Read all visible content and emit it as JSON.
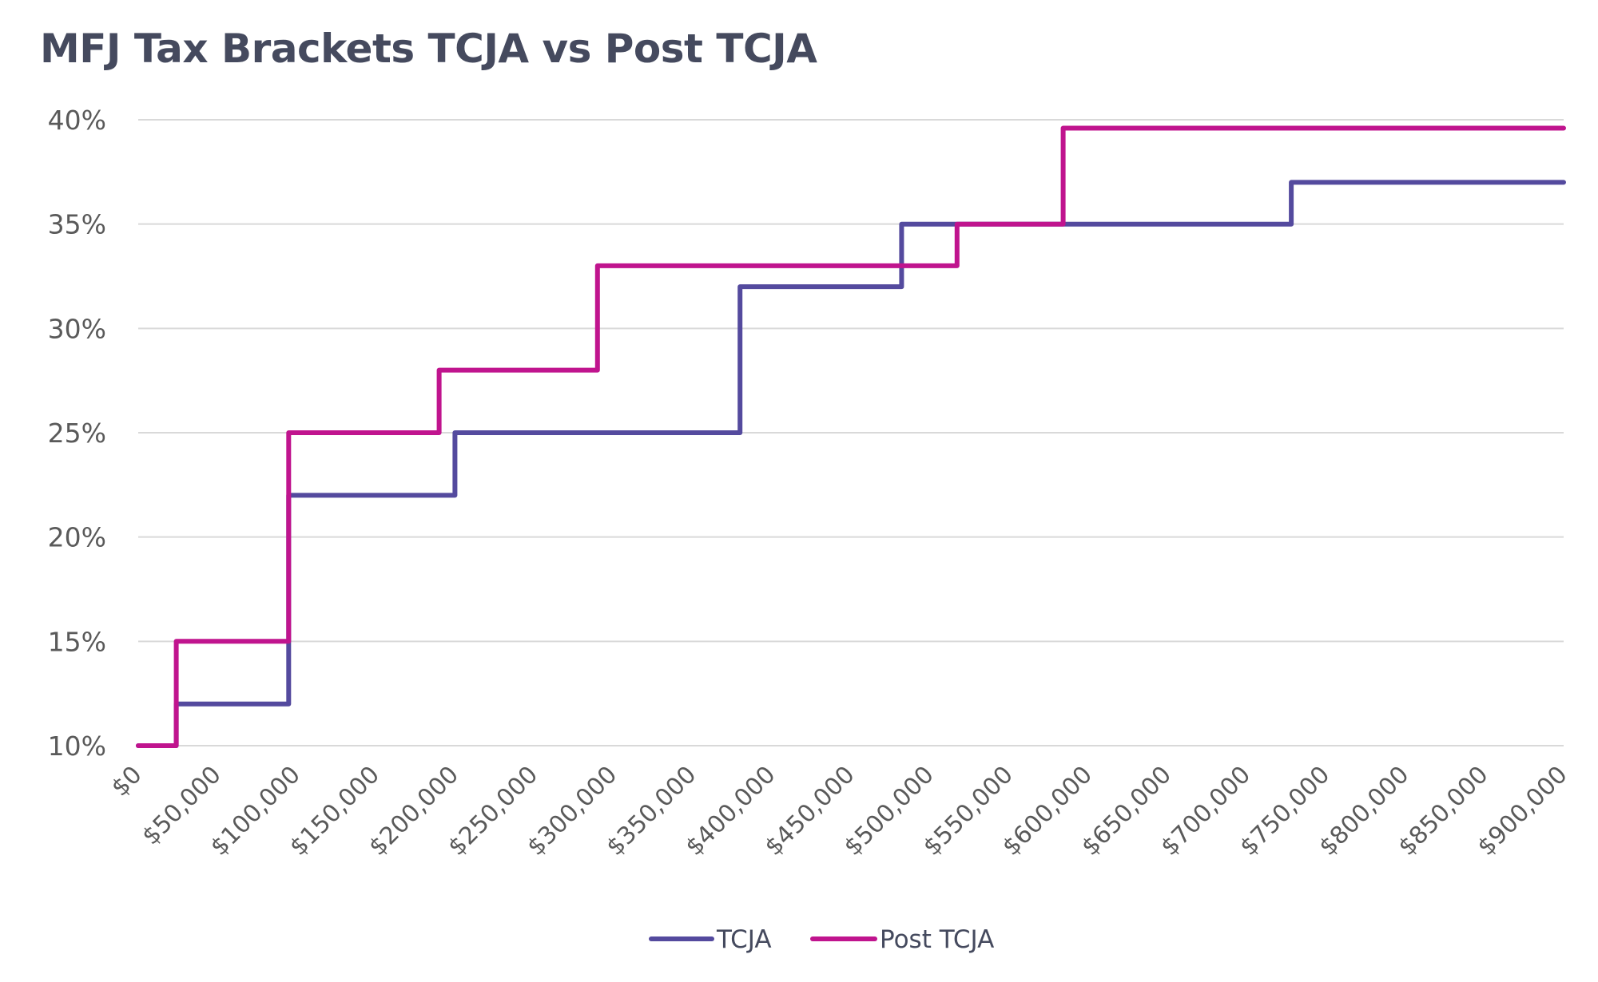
{
  "chart_data": {
    "type": "line",
    "title": "MFJ Tax Brackets TCJA vs Post TCJA",
    "xlabel": "",
    "ylabel": "",
    "xlim": [
      0,
      900000
    ],
    "ylim": [
      0.1,
      0.4
    ],
    "x_ticks": [
      {
        "value": 0,
        "label": "$0"
      },
      {
        "value": 50000,
        "label": "$50,000"
      },
      {
        "value": 100000,
        "label": "$100,000"
      },
      {
        "value": 150000,
        "label": "$150,000"
      },
      {
        "value": 200000,
        "label": "$200,000"
      },
      {
        "value": 250000,
        "label": "$250,000"
      },
      {
        "value": 300000,
        "label": "$300,000"
      },
      {
        "value": 350000,
        "label": "$350,000"
      },
      {
        "value": 400000,
        "label": "$400,000"
      },
      {
        "value": 450000,
        "label": "$450,000"
      },
      {
        "value": 500000,
        "label": "$500,000"
      },
      {
        "value": 550000,
        "label": "$550,000"
      },
      {
        "value": 600000,
        "label": "$600,000"
      },
      {
        "value": 650000,
        "label": "$650,000"
      },
      {
        "value": 700000,
        "label": "$700,000"
      },
      {
        "value": 750000,
        "label": "$750,000"
      },
      {
        "value": 800000,
        "label": "$800,000"
      },
      {
        "value": 850000,
        "label": "$850,000"
      },
      {
        "value": 900000,
        "label": "$900,000"
      }
    ],
    "y_ticks": [
      {
        "value": 0.1,
        "label": "10%"
      },
      {
        "value": 0.15,
        "label": "15%"
      },
      {
        "value": 0.2,
        "label": "20%"
      },
      {
        "value": 0.25,
        "label": "25%"
      },
      {
        "value": 0.3,
        "label": "30%"
      },
      {
        "value": 0.35,
        "label": "35%"
      },
      {
        "value": 0.4,
        "label": "40%"
      }
    ],
    "grid": "horizontal",
    "legend_position": "bottom",
    "series": [
      {
        "name": "TCJA",
        "color": "#544a9e",
        "points": [
          [
            0,
            0.1
          ],
          [
            24000,
            0.1
          ],
          [
            24000,
            0.12
          ],
          [
            95000,
            0.12
          ],
          [
            95000,
            0.22
          ],
          [
            200000,
            0.22
          ],
          [
            200000,
            0.25
          ],
          [
            380000,
            0.25
          ],
          [
            380000,
            0.32
          ],
          [
            482000,
            0.32
          ],
          [
            482000,
            0.35
          ],
          [
            728000,
            0.35
          ],
          [
            728000,
            0.37
          ],
          [
            900000,
            0.37
          ]
        ]
      },
      {
        "name": "Post TCJA",
        "color": "#c0148e",
        "points": [
          [
            0,
            0.1
          ],
          [
            24000,
            0.1
          ],
          [
            24000,
            0.15
          ],
          [
            95000,
            0.15
          ],
          [
            95000,
            0.25
          ],
          [
            190000,
            0.25
          ],
          [
            190000,
            0.28
          ],
          [
            290000,
            0.28
          ],
          [
            290000,
            0.33
          ],
          [
            517000,
            0.33
          ],
          [
            517000,
            0.35
          ],
          [
            584000,
            0.35
          ],
          [
            584000,
            0.396
          ],
          [
            900000,
            0.396
          ]
        ]
      }
    ]
  }
}
